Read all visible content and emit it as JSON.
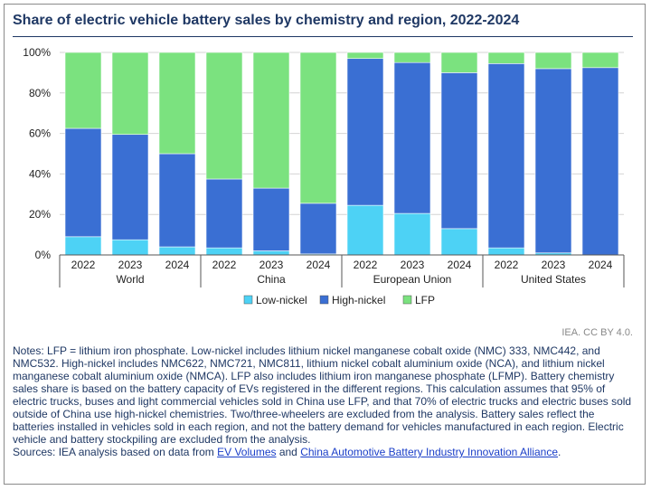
{
  "title": "Share of electric vehicle battery sales by chemistry and region, 2022-2024",
  "credit": "IEA. CC BY 4.0.",
  "notes": "Notes: LFP = lithium iron phosphate. Low-nickel includes lithium nickel manganese cobalt oxide (NMC) 333, NMC442, and NMC532. High-nickel includes NMC622, NMC721, NMC811, lithium nickel cobalt aluminium oxide (NCA), and lithium nickel manganese cobalt aluminium oxide (NMCA). LFP also includes lithium iron manganese phosphate (LFMP). Battery chemistry sales share is based on the battery capacity of EVs registered in the different regions. This calculation assumes that 95% of electric trucks, buses and light commercial vehicles sold in China use LFP, and that 70% of electric trucks and electric buses sold outside of China use high-nickel chemistries. Two/three-wheelers are excluded from the analysis. Battery sales reflect the batteries installed in vehicles sold in each region, and not the battery demand for vehicles manufactured in each region. Electric vehicle and battery stockpiling are excluded from the analysis.",
  "sources": {
    "prefix": "Sources: IEA analysis based on data from ",
    "link1": "EV Volumes",
    "middle": " and ",
    "link2": "China Automotive Battery Industry Innovation Alliance",
    "suffix": "."
  },
  "chart_data": {
    "type": "bar",
    "stacked": true,
    "groups": [
      {
        "name": "World",
        "categories": [
          "2022",
          "2023",
          "2024"
        ]
      },
      {
        "name": "China",
        "categories": [
          "2022",
          "2023",
          "2024"
        ]
      },
      {
        "name": "European Union",
        "categories": [
          "2022",
          "2023",
          "2024"
        ]
      },
      {
        "name": "United States",
        "categories": [
          "2022",
          "2023",
          "2024"
        ]
      }
    ],
    "series": [
      {
        "name": "Low-nickel",
        "color": "#4dd2f5",
        "values": [
          9,
          7.5,
          4,
          3.5,
          2,
          0.5,
          24.5,
          20.5,
          13,
          3.5,
          1,
          0
        ]
      },
      {
        "name": "High-nickel",
        "color": "#3a6fd3",
        "values": [
          53.5,
          52,
          46,
          34,
          31,
          25,
          72.5,
          74.5,
          77,
          91,
          91,
          92.5
        ]
      },
      {
        "name": "LFP",
        "color": "#7be27f",
        "values": [
          37.5,
          40.5,
          50,
          62.5,
          67,
          74.5,
          3,
          5,
          10,
          5.5,
          8,
          7.5
        ]
      }
    ],
    "ylim": [
      0,
      100
    ],
    "yticks": [
      "0%",
      "20%",
      "40%",
      "60%",
      "80%",
      "100%"
    ],
    "grid": true,
    "legend": "bottom"
  }
}
